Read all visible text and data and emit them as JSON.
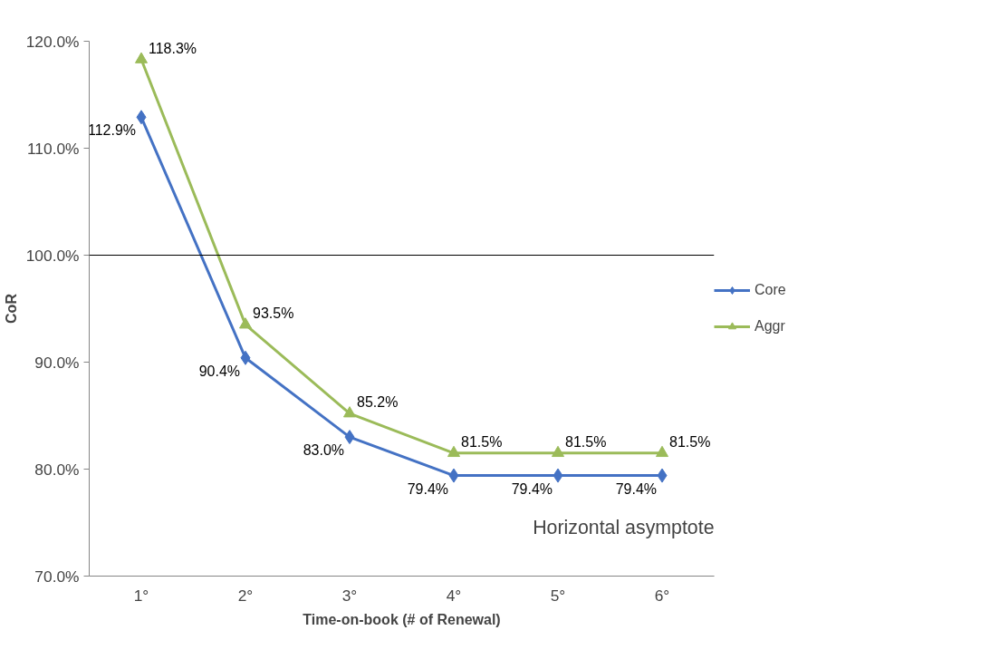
{
  "chart_data": {
    "type": "line",
    "xlabel": "Time-on-book (# of Renewal)",
    "ylabel": "CoR",
    "categories": [
      "1°",
      "2°",
      "3°",
      "4°",
      "5°",
      "6°"
    ],
    "series": [
      {
        "name": "Core",
        "color": "#4472c4",
        "marker": "diamond",
        "values": [
          112.9,
          90.4,
          83.0,
          79.4,
          79.4,
          79.4
        ],
        "value_labels": [
          "112.9%",
          "90.4%",
          "83.0%",
          "79.4%",
          "79.4%",
          "79.4%"
        ]
      },
      {
        "name": "Aggr",
        "color": "#9bbb59",
        "marker": "triangle",
        "values": [
          118.3,
          93.5,
          85.2,
          81.5,
          81.5,
          81.5
        ],
        "value_labels": [
          "118.3%",
          "93.5%",
          "85.2%",
          "81.5%",
          "81.5%",
          "81.5%"
        ]
      }
    ],
    "ylim": [
      70,
      120
    ],
    "yticks": [
      {
        "value": 70,
        "label": "70.0%"
      },
      {
        "value": 80,
        "label": "80.0%"
      },
      {
        "value": 90,
        "label": "90.0%"
      },
      {
        "value": 100,
        "label": "100.0%"
      },
      {
        "value": 110,
        "label": "110.0%"
      },
      {
        "value": 120,
        "label": "120.0%"
      }
    ],
    "ref_lines": [
      {
        "axis": "y",
        "value": 100,
        "label": null,
        "color": "#000000"
      }
    ],
    "annotations": [
      "Horizontal asymptote"
    ],
    "grid": false,
    "legend": "right",
    "line_style": "solid"
  }
}
